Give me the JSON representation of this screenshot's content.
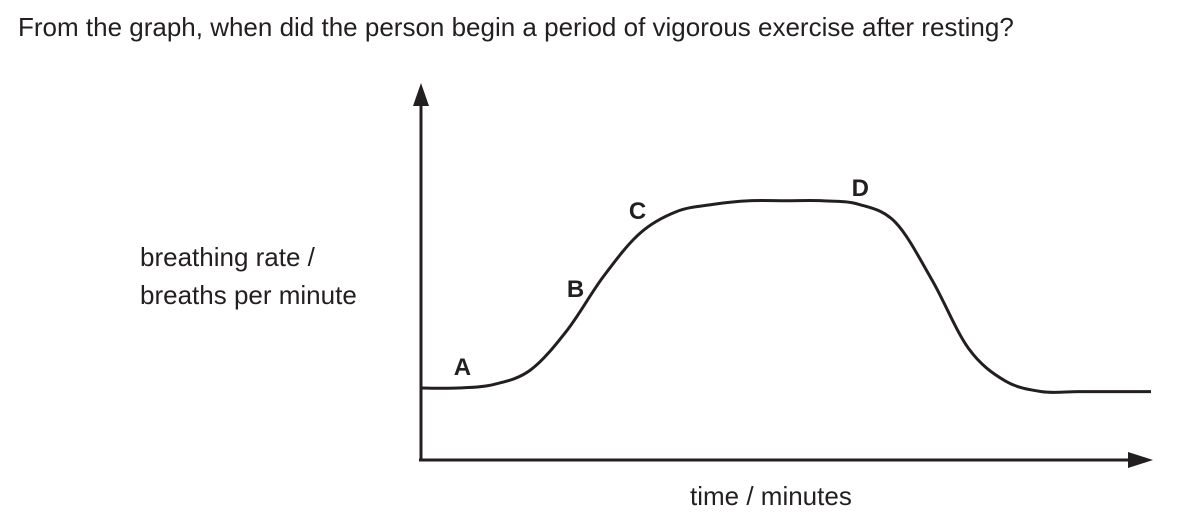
{
  "question": "From the graph, when did the person begin a period of vigorous exercise after resting?",
  "chart_data": {
    "type": "line",
    "title": "",
    "ylabel_lines": [
      "breathing rate /",
      "breaths per minute"
    ],
    "xlabel": "time / minutes",
    "grid": false,
    "legend": "none",
    "annotations": [
      {
        "label": "A",
        "x": 1.3
      },
      {
        "label": "B",
        "x": 4.4
      },
      {
        "label": "C",
        "x": 6.1
      },
      {
        "label": "D",
        "x": 12.2
      }
    ],
    "series": [
      {
        "x": [
          0,
          1,
          2,
          3,
          4,
          5,
          6,
          7,
          8,
          9,
          10,
          11,
          12,
          13,
          14,
          15,
          16,
          17,
          18,
          19,
          20
        ],
        "y": [
          2.0,
          2.0,
          2.1,
          2.5,
          3.6,
          5.1,
          6.3,
          6.9,
          7.1,
          7.2,
          7.2,
          7.2,
          7.1,
          6.6,
          5.0,
          3.1,
          2.2,
          1.9,
          1.9,
          1.9,
          1.9
        ]
      }
    ]
  }
}
